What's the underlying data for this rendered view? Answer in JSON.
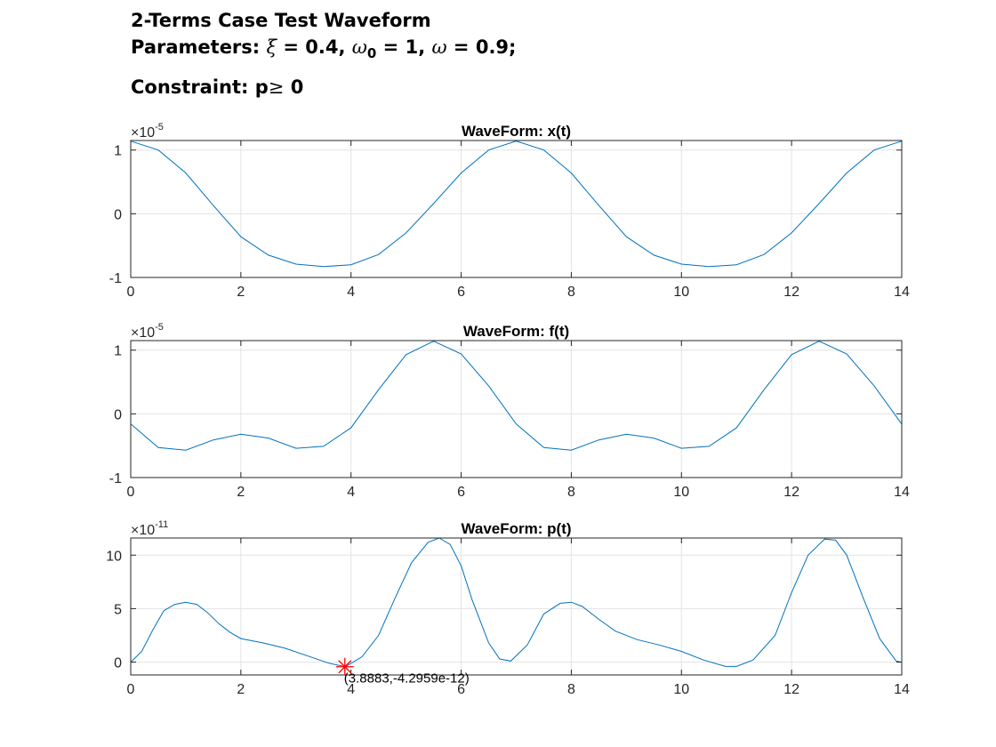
{
  "figure": {
    "title_line1": "2-Terms Case Test Waveform",
    "title_line2": {
      "prefix": "Parameters: ",
      "xi_symbol": "ξ",
      "xi_text": " = 0.4, ",
      "omega0_symbol": "ω",
      "omega0_sub": "0",
      "omega0_text": " = 1, ",
      "omega_symbol": "ω",
      "omega_text": " = 0.9;"
    },
    "title_line3": {
      "prefix": "Constraint: p",
      "symbol": "≥",
      "suffix": " 0"
    }
  },
  "colors": {
    "line": "#0072BD",
    "marker": "#FF0000",
    "grid": "#e3e3e3",
    "axis": "#262626"
  },
  "chart_data": [
    {
      "type": "line",
      "title": "WaveForm: x(t)",
      "xlim": [
        0,
        14
      ],
      "ylim": [
        -1,
        1.15
      ],
      "y_exponent_label": "×10",
      "y_exponent": "-5",
      "grid": true,
      "xticks": [
        0,
        2,
        4,
        6,
        8,
        10,
        12,
        14
      ],
      "yticks": [
        -1,
        0,
        1
      ],
      "series": [
        {
          "x": [
            0,
            0.5,
            1,
            1.5,
            2,
            2.5,
            3,
            3.5,
            4,
            4.5,
            5,
            5.5,
            6,
            6.5,
            7,
            7.5,
            8,
            8.5,
            9,
            9.5,
            10,
            10.5,
            11,
            11.5,
            12,
            12.5,
            13,
            13.5,
            14
          ],
          "y": [
            1.14,
            1.0,
            0.64,
            0.13,
            -0.36,
            -0.65,
            -0.79,
            -0.83,
            -0.8,
            -0.64,
            -0.3,
            0.16,
            0.64,
            1.0,
            1.14,
            1.0,
            0.64,
            0.13,
            -0.36,
            -0.65,
            -0.79,
            -0.83,
            -0.8,
            -0.64,
            -0.3,
            0.16,
            0.64,
            1.0,
            1.14
          ]
        }
      ]
    },
    {
      "type": "line",
      "title": "WaveForm: f(t)",
      "xlim": [
        0,
        14
      ],
      "ylim": [
        -1,
        1.15
      ],
      "y_exponent_label": "×10",
      "y_exponent": "-5",
      "grid": true,
      "xticks": [
        0,
        2,
        4,
        6,
        8,
        10,
        12,
        14
      ],
      "yticks": [
        -1,
        0,
        1
      ],
      "series": [
        {
          "x": [
            0,
            0.5,
            1,
            1.5,
            2,
            2.5,
            3,
            3.5,
            4,
            4.5,
            5,
            5.5,
            6,
            6.5,
            7,
            7.5,
            8,
            8.5,
            9,
            9.5,
            10,
            10.5,
            11,
            11.5,
            12,
            12.5,
            13,
            13.5,
            14
          ],
          "y": [
            -0.16,
            -0.53,
            -0.57,
            -0.41,
            -0.32,
            -0.38,
            -0.54,
            -0.51,
            -0.22,
            0.38,
            0.93,
            1.14,
            0.94,
            0.44,
            -0.16,
            -0.53,
            -0.57,
            -0.41,
            -0.32,
            -0.38,
            -0.54,
            -0.51,
            -0.22,
            0.38,
            0.93,
            1.14,
            0.94,
            0.44,
            -0.16
          ]
        }
      ]
    },
    {
      "type": "line",
      "title": "WaveForm: p(t)",
      "xlim": [
        0,
        14
      ],
      "ylim": [
        -1.2,
        11.6
      ],
      "y_exponent_label": "×10",
      "y_exponent": "-11",
      "grid": true,
      "xticks": [
        0,
        2,
        4,
        6,
        8,
        10,
        12,
        14
      ],
      "yticks": [
        0,
        5,
        10
      ],
      "series": [
        {
          "x": [
            0,
            0.2,
            0.4,
            0.6,
            0.8,
            1.0,
            1.2,
            1.4,
            1.6,
            1.8,
            2.0,
            2.4,
            2.8,
            3.2,
            3.6,
            3.9,
            4.2,
            4.5,
            4.8,
            5.1,
            5.4,
            5.6,
            5.8,
            6.0,
            6.2,
            6.5,
            6.7,
            6.9,
            7.2,
            7.5,
            7.8,
            8.0,
            8.2,
            8.5,
            8.8,
            9.2,
            9.6,
            10.0,
            10.4,
            10.8,
            11.0,
            11.3,
            11.7,
            12.0,
            12.3,
            12.6,
            12.8,
            13.0,
            13.3,
            13.6,
            13.9,
            14.0
          ],
          "y": [
            0,
            1.0,
            3.0,
            4.8,
            5.4,
            5.6,
            5.4,
            4.6,
            3.6,
            2.8,
            2.2,
            1.8,
            1.3,
            0.6,
            -0.1,
            -0.43,
            0.5,
            2.5,
            6.0,
            9.3,
            11.2,
            11.6,
            11.0,
            9.0,
            5.8,
            1.8,
            0.3,
            0.1,
            1.6,
            4.5,
            5.5,
            5.6,
            5.2,
            4.0,
            2.9,
            2.1,
            1.6,
            1.0,
            0.2,
            -0.4,
            -0.4,
            0.2,
            2.5,
            6.5,
            10.0,
            11.5,
            11.4,
            10.0,
            6.0,
            2.2,
            0.1,
            0
          ]
        }
      ],
      "datatip": {
        "x": 3.8883,
        "y": -0.42959,
        "label": "(3.8883,-4.2959e-12)"
      }
    }
  ]
}
